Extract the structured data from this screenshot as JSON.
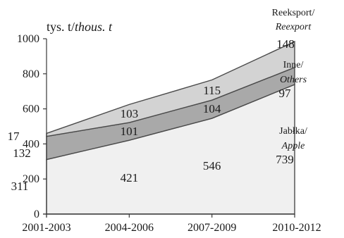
{
  "chart_data": {
    "type": "area",
    "stacked": true,
    "unit_label": {
      "pl": "tys. t/",
      "en": "thous. t"
    },
    "categories": [
      "2001-2003",
      "2004-2006",
      "2007-2009",
      "2010-2012"
    ],
    "y_ticks": [
      "0",
      "200",
      "400",
      "600",
      "800",
      "1000"
    ],
    "ylim": [
      0,
      1000
    ],
    "grid": false,
    "series": [
      {
        "name_pl": "Jabłka/",
        "name_en": "Apple",
        "values": [
          311,
          421,
          546,
          739
        ],
        "labels": [
          "311",
          "421",
          "546",
          "739"
        ],
        "fill": "#f0f0f0"
      },
      {
        "name_pl": "Inne/",
        "name_en": "Others",
        "values": [
          132,
          101,
          104,
          97
        ],
        "labels": [
          "132",
          "101",
          "104",
          "97"
        ],
        "fill": "#a9a9a9"
      },
      {
        "name_pl": "Reeksport/",
        "name_en": "Reexport",
        "values": [
          17,
          103,
          115,
          148
        ],
        "labels": [
          "17",
          "103",
          "115",
          "148"
        ],
        "fill": "#d3d3d3"
      }
    ]
  }
}
